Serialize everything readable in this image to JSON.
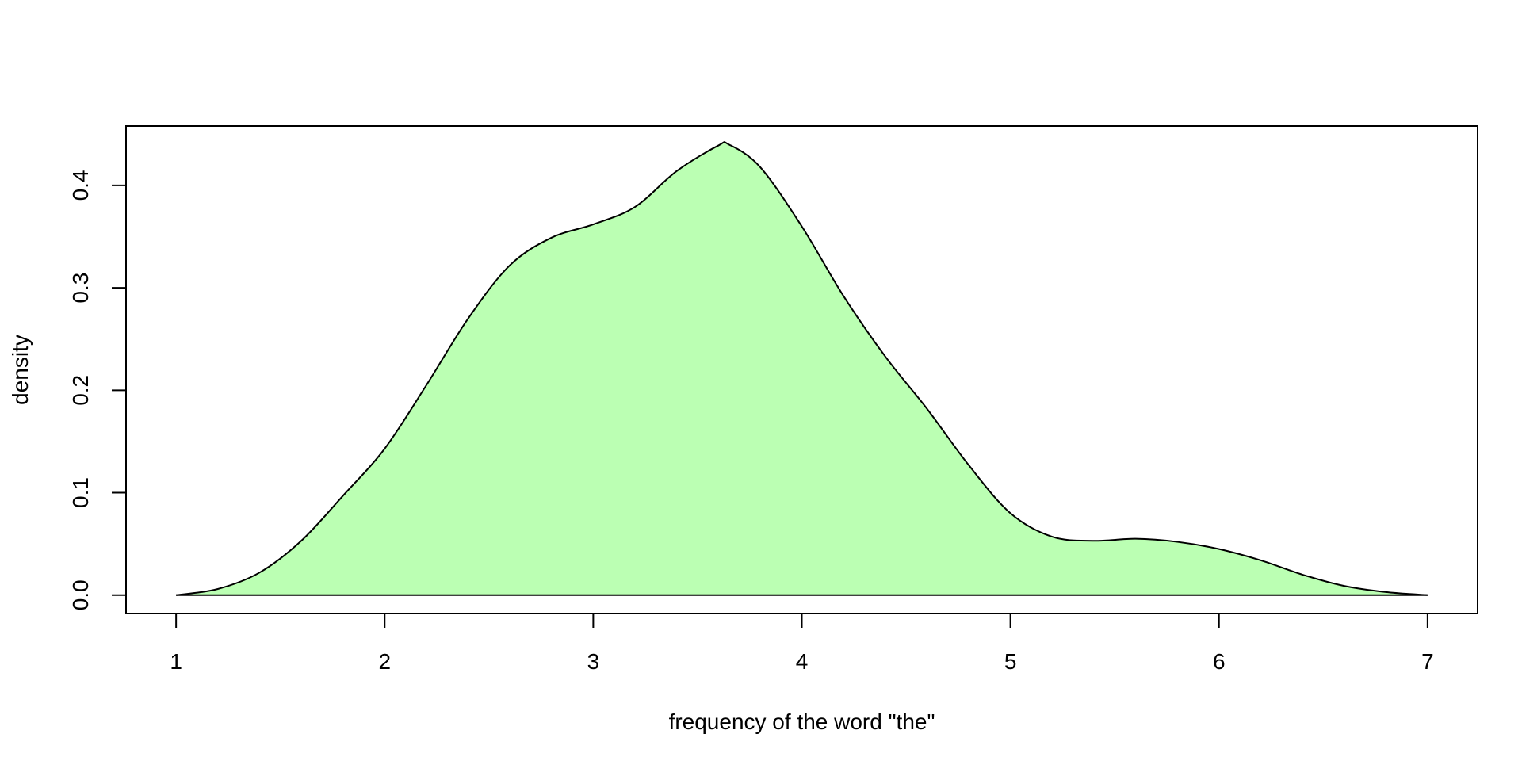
{
  "chart_data": {
    "type": "area",
    "title": "",
    "xlabel": "frequency of the word \"the\"",
    "ylabel": "density",
    "xlim": [
      0.76,
      7.24
    ],
    "ylim": [
      -0.018,
      0.458
    ],
    "x_ticks": [
      1,
      2,
      3,
      4,
      5,
      6,
      7
    ],
    "x_tick_labels": [
      "1",
      "2",
      "3",
      "4",
      "5",
      "6",
      "7"
    ],
    "y_ticks": [
      0.0,
      0.1,
      0.2,
      0.3,
      0.4
    ],
    "y_tick_labels": [
      "0.0",
      "0.1",
      "0.2",
      "0.3",
      "0.4"
    ],
    "grid": false,
    "legend": "none",
    "fill_color": "#bbffb3",
    "line_color": "#000000",
    "series": [
      {
        "x": [
          1.0,
          1.2,
          1.4,
          1.6,
          1.8,
          2.0,
          2.2,
          2.4,
          2.6,
          2.8,
          3.0,
          3.2,
          3.4,
          3.6,
          3.65,
          3.8,
          4.0,
          4.2,
          4.4,
          4.6,
          4.8,
          5.0,
          5.2,
          5.4,
          5.6,
          5.8,
          6.0,
          6.2,
          6.4,
          6.6,
          6.8,
          7.0
        ],
        "y": [
          0.0,
          0.006,
          0.022,
          0.053,
          0.097,
          0.143,
          0.205,
          0.27,
          0.322,
          0.349,
          0.362,
          0.379,
          0.414,
          0.439,
          0.44,
          0.418,
          0.36,
          0.292,
          0.233,
          0.182,
          0.127,
          0.08,
          0.057,
          0.053,
          0.055,
          0.052,
          0.045,
          0.034,
          0.02,
          0.009,
          0.003,
          0.0
        ]
      }
    ]
  }
}
